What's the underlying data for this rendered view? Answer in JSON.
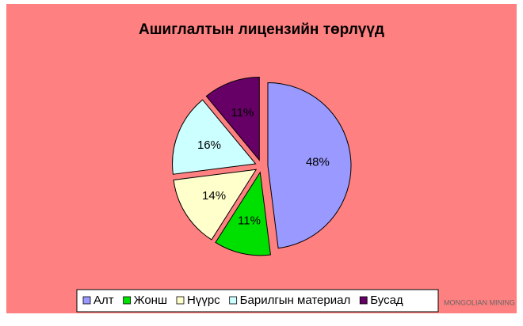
{
  "chart_data": {
    "type": "pie",
    "title": "Ашиглалтын лицензийн төрлүүд",
    "categories": [
      "Алт",
      "Жонш",
      "Нүүрс",
      "Барилгын материал",
      "Бусад"
    ],
    "values": [
      48,
      11,
      14,
      16,
      11
    ],
    "value_labels": [
      "48%",
      "11%",
      "14%",
      "16%",
      "11%"
    ],
    "colors": [
      "#9999ff",
      "#00e000",
      "#ffffcc",
      "#ccffff",
      "#660066"
    ],
    "legend": "bottom",
    "watermark": "MONGOLIAN MINING"
  }
}
